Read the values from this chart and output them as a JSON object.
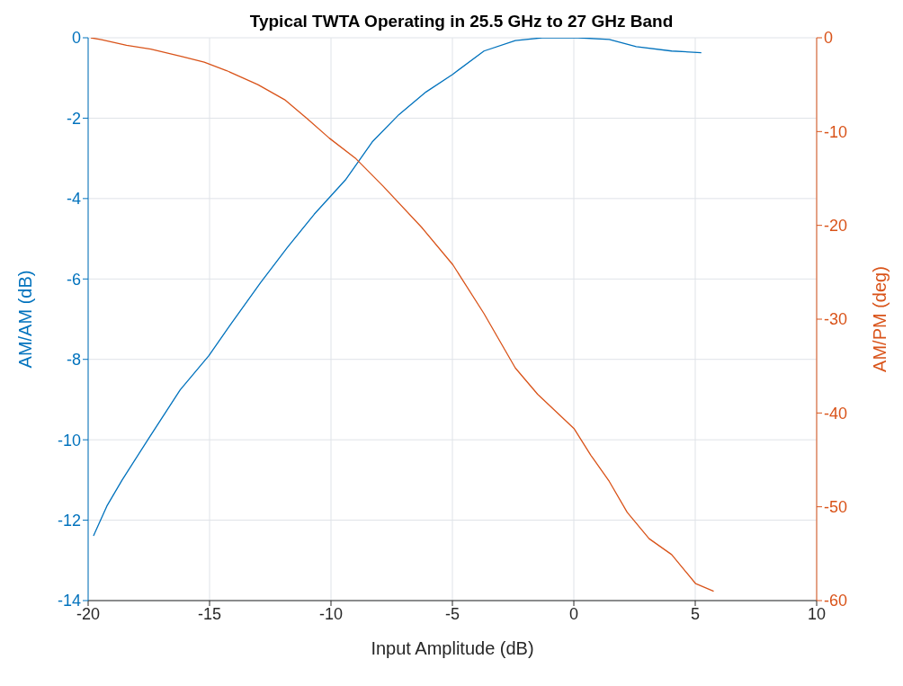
{
  "chart_data": {
    "type": "line",
    "title": "Typical TWTA Operating in 25.5 GHz to 27 GHz Band",
    "xlabel": "Input Amplitude (dB)",
    "ylabel": "AM/AM (dB)",
    "y2label": "AM/PM (deg)",
    "xlim": [
      -20,
      10
    ],
    "xticks": [
      -20,
      -15,
      -10,
      -5,
      0,
      5,
      10
    ],
    "ylim": [
      -14,
      0
    ],
    "yticks": [
      -14,
      -12,
      -10,
      -8,
      -6,
      -4,
      -2,
      0
    ],
    "y2lim": [
      -60,
      0
    ],
    "y2ticks": [
      -60,
      -50,
      -40,
      -30,
      -20,
      -10,
      0
    ],
    "grid": true,
    "marker": "none",
    "line_style": "solid",
    "series": [
      {
        "color": "#0072bd",
        "x": [
          -19.78,
          -19.23,
          -18.6,
          -17.5,
          -16.21,
          -15.03,
          -14.18,
          -12.9,
          -11.8,
          -10.69,
          -9.41,
          -8.3,
          -7.2,
          -6.09,
          -4.99,
          -3.7,
          -2.41,
          -1.3,
          0.17,
          1.46,
          2.57,
          4.03,
          5.25
        ],
        "values": [
          -12.39,
          -11.65,
          -11.0,
          -9.96,
          -8.76,
          -7.91,
          -7.17,
          -6.09,
          -5.22,
          -4.39,
          -3.54,
          -2.59,
          -1.91,
          -1.35,
          -0.91,
          -0.33,
          -0.07,
          0,
          0,
          -0.04,
          -0.22,
          -0.33,
          -0.37
        ]
      },
      {
        "color": "#d95319",
        "axis": "y2",
        "x": [
          -19.89,
          -19.45,
          -18.42,
          -17.42,
          -16.14,
          -15.22,
          -14.3,
          -13.01,
          -11.91,
          -10.99,
          -10.07,
          -8.97,
          -7.86,
          -6.27,
          -4.98,
          -3.7,
          -2.41,
          -1.49,
          0.02,
          0.7,
          1.46,
          2.2,
          3.1,
          4.03,
          5.02,
          5.76
        ],
        "values": [
          0,
          -0.2,
          -0.8,
          -1.2,
          -2.0,
          -2.6,
          -3.5,
          -5.0,
          -6.6,
          -8.6,
          -10.7,
          -12.9,
          -15.8,
          -20.2,
          -24.2,
          -29.4,
          -35.2,
          -38,
          -41.7,
          -44.5,
          -47.3,
          -50.6,
          -53.4,
          -55.1,
          -58.2,
          -59.0
        ]
      }
    ]
  }
}
